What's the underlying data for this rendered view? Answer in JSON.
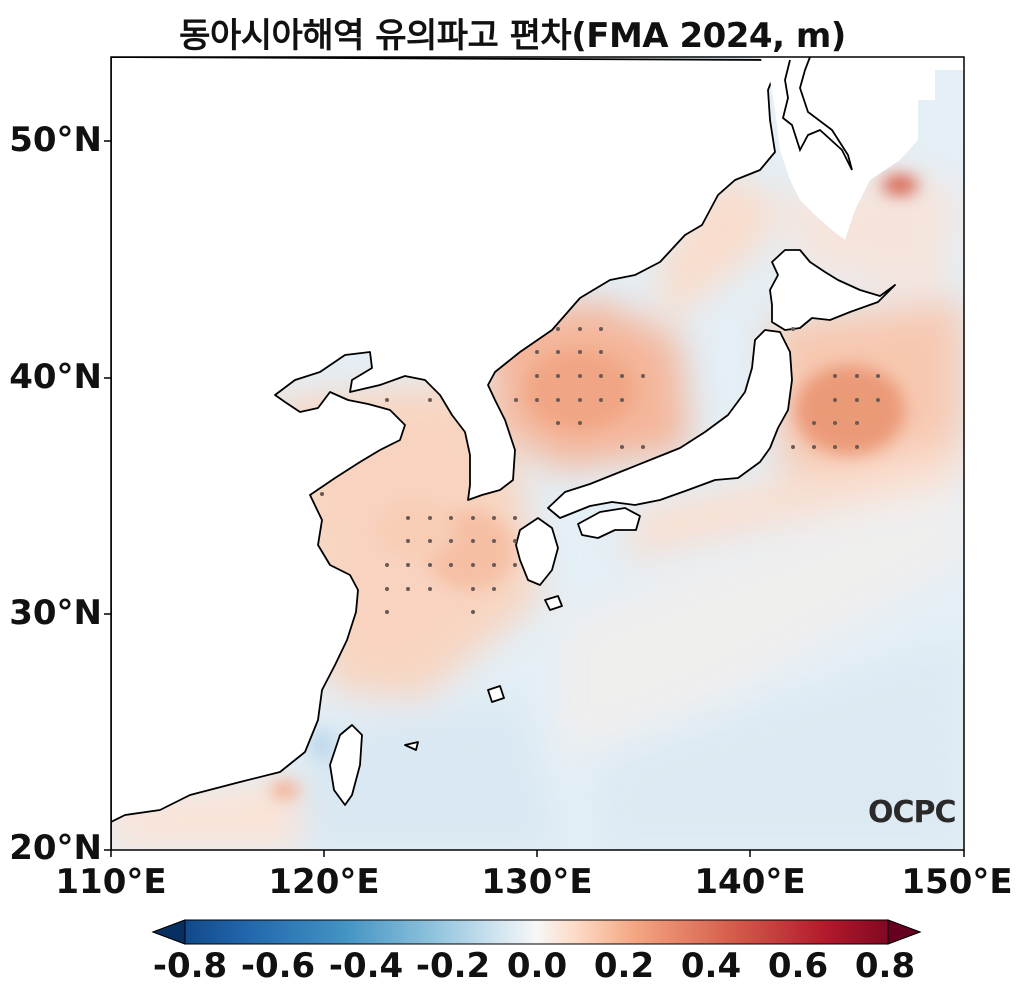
{
  "title": "동아시아해역 유의파고 편차(FMA 2024, m)",
  "map": {
    "lon_range": [
      110,
      150
    ],
    "lat_range": [
      20,
      53.5
    ],
    "x_ticks": [
      "110°E",
      "120°E",
      "130°E",
      "140°E",
      "150°E"
    ],
    "y_ticks": [
      "20°N",
      "30°N",
      "40°N",
      "50°N"
    ],
    "logo": "OCPC"
  },
  "colorbar": {
    "colormap": "RdBu_r",
    "range": [
      -0.8,
      0.8
    ],
    "extend": "both",
    "tick_labels": [
      "-0.8",
      "-0.6",
      "-0.4",
      "-0.2",
      "0.0",
      "0.2",
      "0.4",
      "0.6",
      "0.8"
    ]
  }
}
